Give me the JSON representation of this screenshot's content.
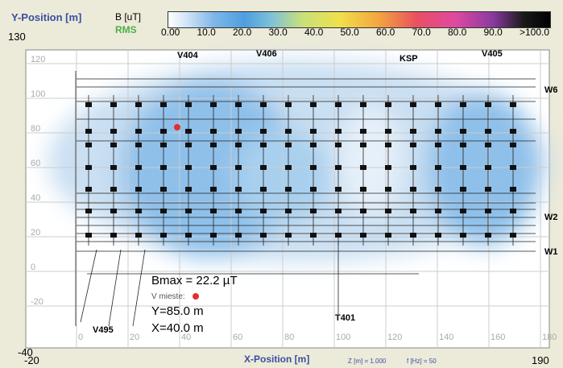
{
  "header": {
    "y_axis_title": "Y-Position [m]",
    "y_max": "130",
    "unit": "B [uT]",
    "mode": "RMS"
  },
  "colorbar": {
    "labels": [
      "0.00",
      "10.0",
      "20.0",
      "30.0",
      "40.0",
      "50.0",
      "60.0",
      "70.0",
      "80.0",
      "90.0",
      ">100.0"
    ]
  },
  "plot": {
    "y_labels": [
      "120",
      "100",
      "80",
      "60",
      "40",
      "20",
      "0",
      "-20"
    ],
    "x_labels": [
      "0",
      "20",
      "40",
      "60",
      "80",
      "100",
      "120",
      "140",
      "160",
      "180"
    ],
    "structures": [
      "V404",
      "V406",
      "KSP",
      "V405",
      "W6",
      "W2",
      "W1",
      "V495",
      "T401"
    ],
    "bmax": "Bmax = 22.2 µT",
    "location_label": "V mieste:",
    "y_value": "Y=85.0 m",
    "x_value": "X=40.0 m"
  },
  "footer": {
    "y_min": "-40",
    "x_min": "-20",
    "x_axis_title": "X-Position [m]",
    "z": "Z [m] = 1.000",
    "f": "f [Hz] = 50",
    "x_max": "190"
  }
}
